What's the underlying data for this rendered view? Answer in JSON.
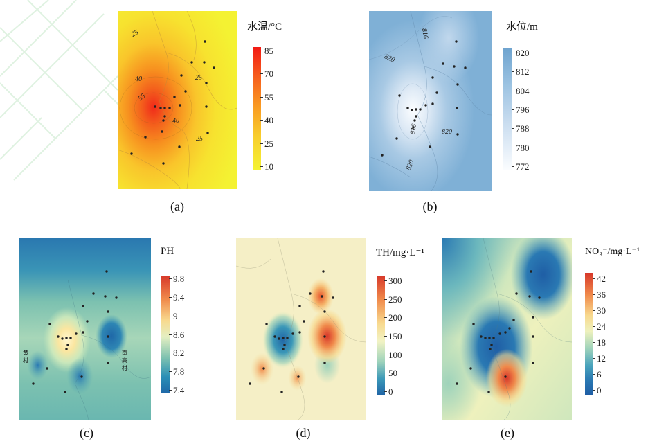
{
  "panels": [
    {
      "id": "a",
      "caption": "(a)",
      "title": "水温/°C",
      "ticks": [
        "85",
        "70",
        "55",
        "40",
        "25",
        "10"
      ],
      "colors": [
        "#f32a1a",
        "#f97a1e",
        "#fbb52b",
        "#f7e02f",
        "#f4f333"
      ],
      "contour_labels": [
        "25",
        "40",
        "55",
        "25",
        "40",
        "25"
      ]
    },
    {
      "id": "b",
      "caption": "(b)",
      "title": "水位/m",
      "ticks": [
        "820",
        "812",
        "804",
        "796",
        "788",
        "780",
        "772"
      ],
      "colors": [
        "#6fa4cf",
        "#9cc3e2",
        "#c8dcef",
        "#e4eef8",
        "#fbfdff"
      ],
      "contour_labels": [
        "816",
        "820",
        "816",
        "820",
        "820"
      ]
    },
    {
      "id": "c",
      "caption": "(c)",
      "title": "PH",
      "ticks": [
        "9.8",
        "9.4",
        "9",
        "8.6",
        "8.2",
        "7.8",
        "7.4"
      ],
      "colors": [
        "#d7382a",
        "#f08a4b",
        "#f8d98e",
        "#e4efc2",
        "#7cc1b0",
        "#2a8fb6",
        "#1f68a8"
      ],
      "place_labels": [
        "黄村",
        "南高村"
      ]
    },
    {
      "id": "d",
      "caption": "(d)",
      "title": "TH/mg·L⁻¹",
      "ticks": [
        "300",
        "250",
        "200",
        "150",
        "100",
        "50",
        "0"
      ],
      "colors": [
        "#d7382a",
        "#f08a4b",
        "#f8d98e",
        "#f2f3c4",
        "#9fd3bb",
        "#3a97b8",
        "#2166a6"
      ]
    },
    {
      "id": "e",
      "caption": "(e)",
      "title": "NO₃⁻/mg·L⁻¹",
      "ticks": [
        "42",
        "36",
        "30",
        "24",
        "18",
        "12",
        "6",
        "0"
      ],
      "colors": [
        "#d7382a",
        "#f08a4b",
        "#f8d98e",
        "#eef1bd",
        "#9fd3bb",
        "#4aa3bc",
        "#2a79b3",
        "#1f5ea5"
      ]
    }
  ]
}
